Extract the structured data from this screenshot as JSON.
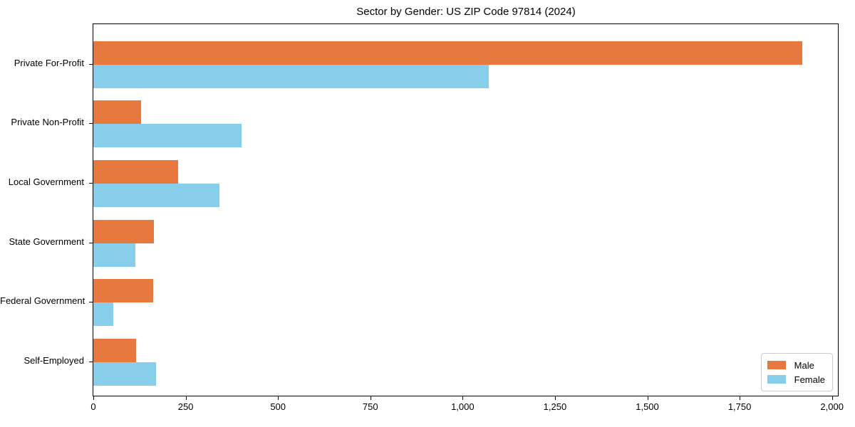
{
  "chart_data": {
    "type": "bar",
    "orientation": "horizontal",
    "title": "Sector by Gender: US ZIP Code 97814 (2024)",
    "categories": [
      "Private For-Profit",
      "Private Non-Profit",
      "Local Government",
      "State Government",
      "Federal Government",
      "Self-Employed"
    ],
    "series": [
      {
        "name": "Male",
        "color": "#e8793e",
        "values": [
          1920,
          130,
          229,
          163,
          162,
          116
        ]
      },
      {
        "name": "Female",
        "color": "#87ceeb",
        "values": [
          1071,
          402,
          342,
          114,
          53,
          169
        ]
      }
    ],
    "xlabel": "",
    "ylabel": "",
    "xlim": [
      0,
      2016
    ],
    "xticks": [
      0,
      250,
      500,
      750,
      1000,
      1250,
      1500,
      1750,
      2000
    ],
    "xtick_labels": [
      "0",
      "250",
      "500",
      "750",
      "1,000",
      "1,250",
      "1,500",
      "1,750",
      "2,000"
    ],
    "grid": false,
    "legend_position": "lower right",
    "background_color": "#ffffff",
    "spine_color": "#000000"
  }
}
